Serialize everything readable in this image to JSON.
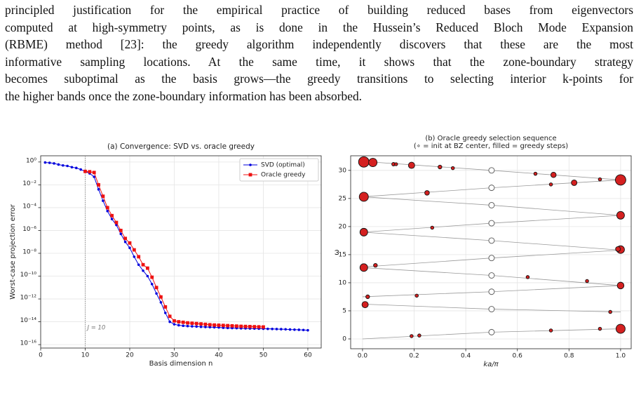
{
  "paragraph": {
    "lines": [
      "principled justification for the empirical practice of building reduced bases from eigenvectors",
      "computed at high-symmetry points, as is done in the Hussein’s Reduced Bloch Mode Expansion",
      "(RBME) method [23]: the greedy algorithm independently discovers that these are the most",
      "informative sampling locations.  At the same time, it shows that the zone-boundary strategy",
      "becomes suboptimal as the basis grows—the greedy transitions to selecting interior k-points for",
      "the higher bands once the zone-boundary information has been absorbed."
    ]
  },
  "chart_data": [
    {
      "type": "line",
      "title": "(a) Convergence: SVD vs. oracle greedy",
      "xlabel": "Basis dimension n",
      "ylabel": "Worst-case projection error",
      "ylog": true,
      "grid": true,
      "legend": "upper right",
      "xlim": [
        0,
        63
      ],
      "xticks": [
        0,
        10,
        20,
        30,
        40,
        50,
        60
      ],
      "ylim": [
        5e-17,
        3.5
      ],
      "yticks": [
        {
          "value": 1,
          "label": "10⁰"
        },
        {
          "value": 0.01,
          "label": "10⁻²"
        },
        {
          "value": 0.0001,
          "label": "10⁻⁴"
        },
        {
          "value": 1e-06,
          "label": "10⁻⁶"
        },
        {
          "value": 1e-08,
          "label": "10⁻⁸"
        },
        {
          "value": 1e-10,
          "label": "10⁻¹⁰"
        },
        {
          "value": 1e-12,
          "label": "10⁻¹²"
        },
        {
          "value": 1e-14,
          "label": "10⁻¹⁴"
        },
        {
          "value": 1e-16,
          "label": "10⁻¹⁶"
        }
      ],
      "vline": 10,
      "annotation": "J = 10",
      "series": [
        {
          "name": "SVD (optimal)",
          "color": "#0000dd",
          "marker": "circle",
          "x": [
            1,
            2,
            3,
            4,
            5,
            6,
            7,
            8,
            9,
            10,
            11,
            12,
            13,
            14,
            15,
            16,
            17,
            18,
            19,
            20,
            21,
            22,
            23,
            24,
            25,
            26,
            27,
            28,
            29,
            30,
            31,
            32,
            33,
            34,
            35,
            36,
            37,
            38,
            39,
            40,
            41,
            42,
            43,
            44,
            45,
            46,
            47,
            48,
            49,
            50,
            51,
            52,
            53,
            54,
            55,
            56,
            57,
            58,
            59,
            60
          ],
          "values": [
            0.9,
            0.85,
            0.75,
            0.6,
            0.5,
            0.45,
            0.35,
            0.3,
            0.22,
            0.15,
            0.1,
            0.05,
            0.004,
            0.0004,
            5e-05,
            1e-05,
            3e-06,
            5e-07,
            1e-07,
            3e-08,
            5e-09,
            1e-09,
            3e-10,
            1e-10,
            2e-11,
            3e-12,
            5e-13,
            6e-14,
            1e-14,
            6e-15,
            5e-15,
            4.5e-15,
            4.2e-15,
            4e-15,
            3.8e-15,
            3.6e-15,
            3.5e-15,
            3.4e-15,
            3.3e-15,
            3.2e-15,
            3e-15,
            2.9e-15,
            2.85e-15,
            2.8e-15,
            2.7e-15,
            2.65e-15,
            2.6e-15,
            2.55e-15,
            2.5e-15,
            2.45e-15,
            2.4e-15,
            2.35e-15,
            2.3e-15,
            2.25e-15,
            2.2e-15,
            2.1e-15,
            2.05e-15,
            2e-15,
            1.9e-15,
            1.8e-15
          ]
        },
        {
          "name": "Oracle greedy",
          "color": "#ee1111",
          "marker": "square",
          "x": [
            10,
            11,
            12,
            13,
            14,
            15,
            16,
            17,
            18,
            19,
            20,
            21,
            22,
            23,
            24,
            25,
            26,
            27,
            28,
            29,
            30,
            31,
            32,
            33,
            34,
            35,
            36,
            37,
            38,
            39,
            40,
            41,
            42,
            43,
            44,
            45,
            46,
            47,
            48,
            49,
            50
          ],
          "values": [
            0.15,
            0.14,
            0.12,
            0.01,
            0.001,
            0.0001,
            2e-05,
            5e-06,
            1e-06,
            2e-07,
            8e-08,
            2e-08,
            5e-09,
            1e-09,
            5e-10,
            8e-11,
            1e-11,
            1.5e-12,
            2e-13,
            3e-14,
            1.2e-14,
            1e-14,
            9e-15,
            8e-15,
            7.5e-15,
            7e-15,
            6.5e-15,
            6e-15,
            5.5e-15,
            5.2e-15,
            5e-15,
            4.8e-15,
            4.6e-15,
            4.4e-15,
            4.2e-15,
            4e-15,
            3.9e-15,
            3.8e-15,
            3.7e-15,
            3.6e-15,
            3.5e-15
          ]
        }
      ]
    },
    {
      "type": "scatter",
      "title": "(b) Oracle greedy selection sequence",
      "subtitle": "(∘ = init at BZ center, filled = greedy steps)",
      "xlabel": "ka/π",
      "ylabel": "ω",
      "grid": true,
      "xlim": [
        -0.046,
        1.041
      ],
      "xticks": [
        {
          "value": 0,
          "label": "0.0"
        },
        0.2,
        0.4,
        0.6,
        0.8,
        {
          "value": 1,
          "label": "1.0"
        }
      ],
      "ylim": [
        -1.75,
        32.6
      ],
      "yticks": [
        0,
        5,
        10,
        15,
        20,
        25,
        30
      ],
      "line_color": "#999999",
      "lines": [
        {
          "x": [
            0,
            0.5,
            1
          ],
          "y": [
            0,
            1.2,
            1.8
          ]
        },
        {
          "x": [
            0,
            0.5,
            1
          ],
          "y": [
            6.2,
            5.3,
            4.8
          ]
        },
        {
          "x": [
            0,
            0.5,
            1
          ],
          "y": [
            7.5,
            8.4,
            9.5
          ]
        },
        {
          "x": [
            0,
            0.5,
            1
          ],
          "y": [
            12.7,
            11.3,
            9.5
          ]
        },
        {
          "x": [
            0,
            0.5,
            1
          ],
          "y": [
            12.8,
            14.4,
            15.8
          ]
        },
        {
          "x": [
            0,
            0.5,
            1
          ],
          "y": [
            19,
            17.5,
            15.8
          ]
        },
        {
          "x": [
            0,
            0.5,
            1
          ],
          "y": [
            19,
            20.6,
            22
          ]
        },
        {
          "x": [
            0,
            0.5,
            1
          ],
          "y": [
            25.3,
            23.8,
            22
          ]
        },
        {
          "x": [
            0,
            0.5,
            1
          ],
          "y": [
            25.3,
            26.9,
            28.3
          ]
        },
        {
          "x": [
            0,
            0.5,
            1
          ],
          "y": [
            31.6,
            30,
            28.3
          ]
        }
      ],
      "init_points": {
        "color": "#ffffff",
        "x": [
          0.5,
          0.5,
          0.5,
          0.5,
          0.5,
          0.5,
          0.5,
          0.5,
          0.5,
          0.5
        ],
        "y": [
          1.2,
          5.3,
          8.4,
          11.3,
          14.4,
          17.5,
          20.6,
          23.8,
          26.9,
          30
        ]
      },
      "greedy_points": {
        "color": "#d42020",
        "x": [
          0.005,
          0.04,
          0.12,
          0.13,
          0.19,
          0.3,
          0.35,
          0.67,
          0.74,
          0.92,
          1.0,
          0.82,
          0.73,
          0.25,
          0.005,
          1.0,
          0.27,
          0.005,
          1.0,
          0.99,
          0.05,
          0.005,
          0.64,
          0.87,
          1.0,
          0.02,
          0.21,
          0.01,
          0.96,
          0.19,
          0.22,
          0.73,
          0.92,
          1.0
        ],
        "y": [
          31.5,
          31.4,
          31.1,
          31.1,
          30.9,
          30.6,
          30.4,
          29.4,
          29.2,
          28.4,
          28.3,
          27.8,
          27.5,
          26,
          25.3,
          22,
          19.8,
          19,
          15.9,
          16,
          13.1,
          12.7,
          11,
          10.3,
          9.5,
          7.5,
          7.7,
          6.1,
          4.8,
          0.5,
          0.6,
          1.5,
          1.8,
          1.8
        ],
        "sizes": [
          7.5,
          6,
          2.5,
          2.2,
          4.5,
          2.7,
          2.3,
          2.3,
          3.8,
          2.3,
          7.5,
          4,
          2.3,
          3.3,
          6.5,
          5.5,
          2.3,
          5.5,
          5.5,
          3.5,
          2.7,
          5.5,
          2.3,
          2.3,
          4.8,
          2.7,
          2.3,
          4.5,
          2.3,
          2.3,
          2.3,
          2.3,
          2.3,
          6.5
        ]
      }
    }
  ]
}
